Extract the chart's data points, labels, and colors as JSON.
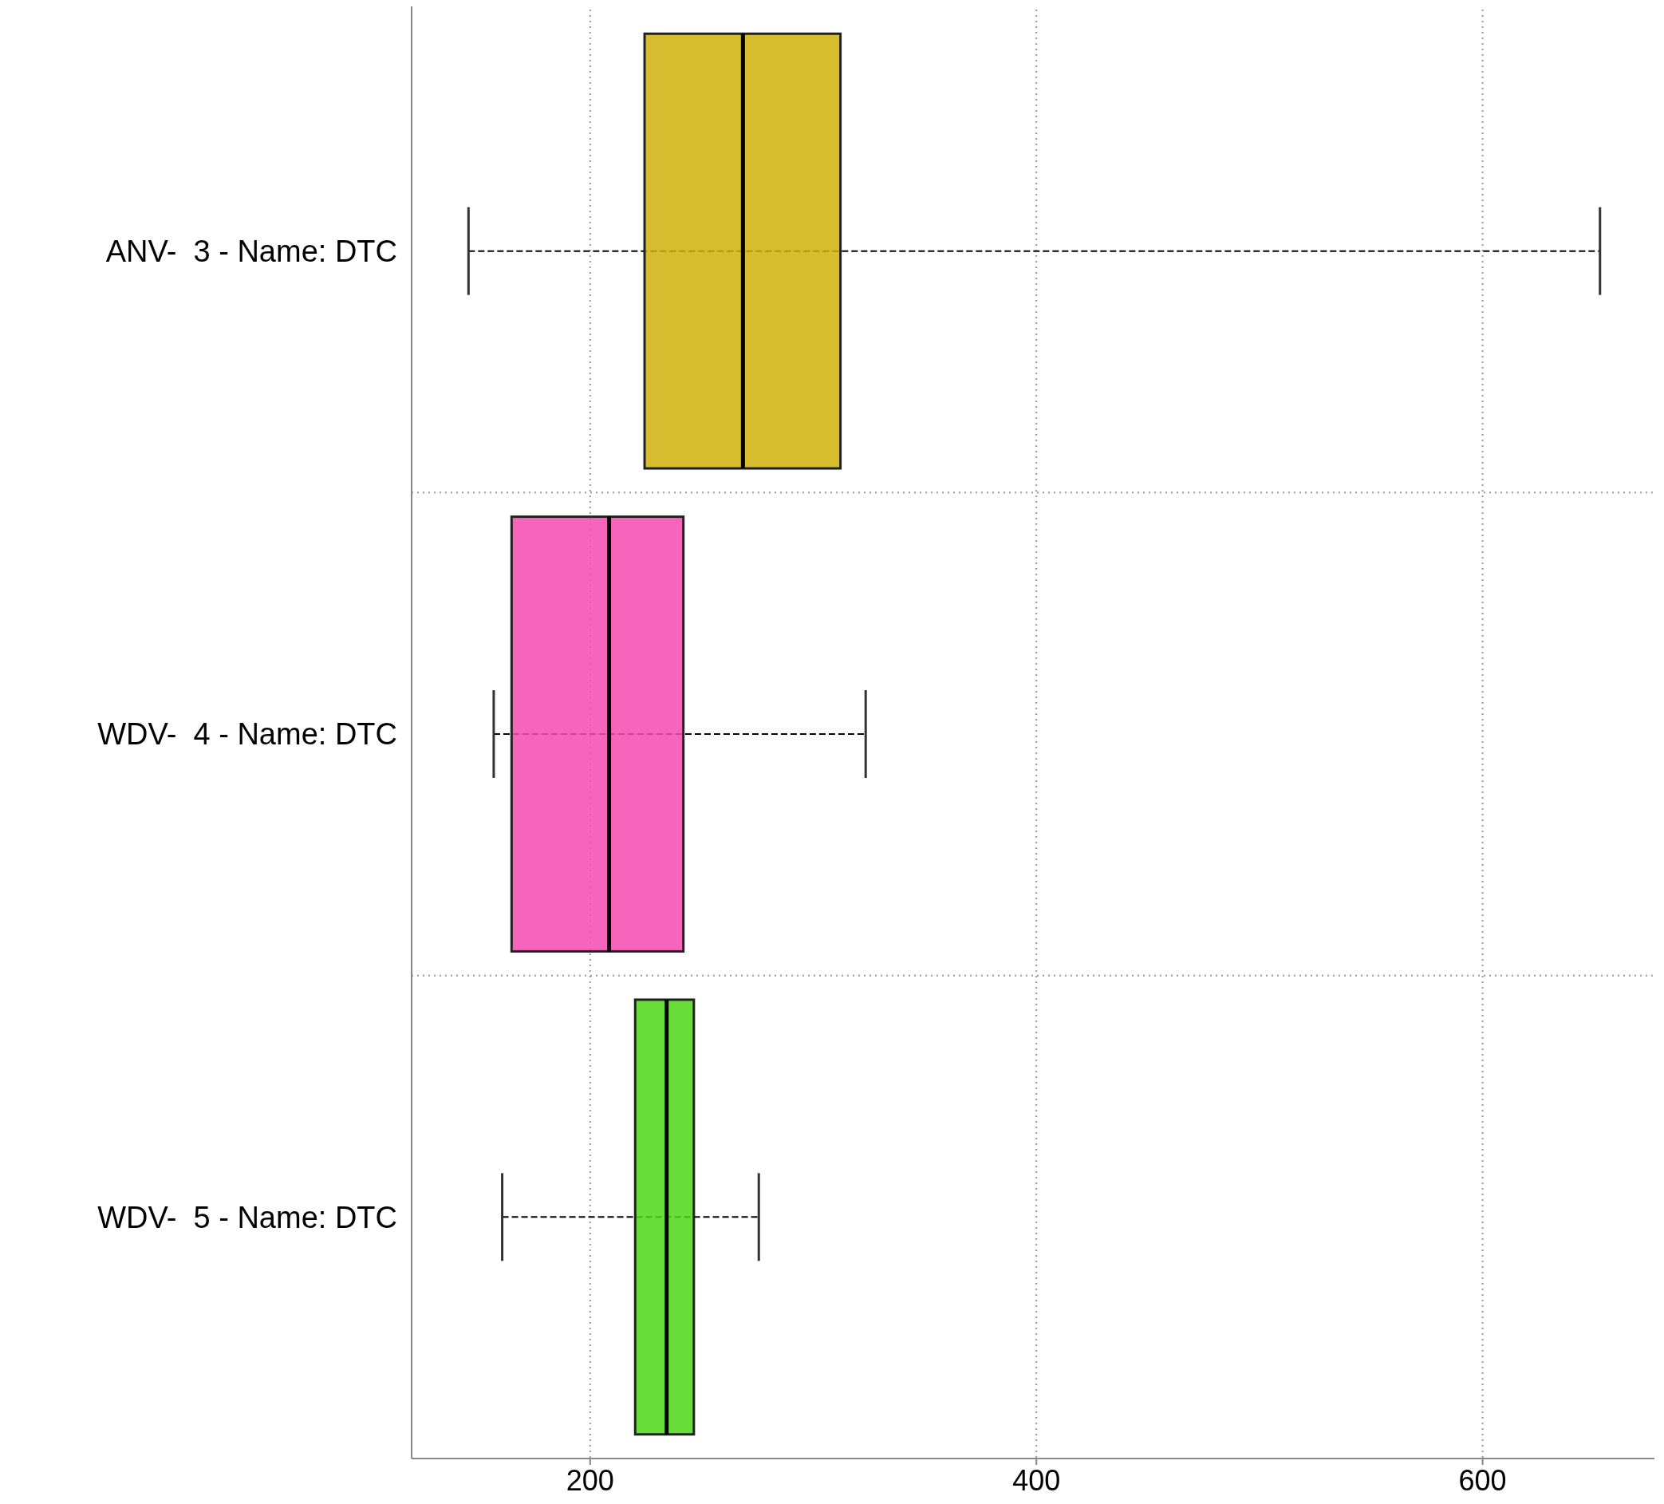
{
  "chart_data": {
    "type": "box",
    "orientation": "horizontal",
    "categories": [
      "ANV-  3 - Name: DTC",
      "WDV-  4 - Name: DTC",
      "WDV-  5 - Name: DTC"
    ],
    "boxes": [
      {
        "low": 145.5,
        "q1": 224.4,
        "median": 268.5,
        "q3": 312.2,
        "high": 652.6
      },
      {
        "low": 156.8,
        "q1": 164.8,
        "median": 208.5,
        "q3": 241.8,
        "high": 323.5
      },
      {
        "low": 160.6,
        "q1": 220.2,
        "median": 234.3,
        "q3": 246.5,
        "high": 275.6
      }
    ],
    "colors": [
      "#cfb00a",
      "#f54ab0",
      "#4cd816"
    ],
    "xlim": [
      120,
      677
    ],
    "xticks": [
      200,
      400,
      600
    ],
    "grid": true
  }
}
